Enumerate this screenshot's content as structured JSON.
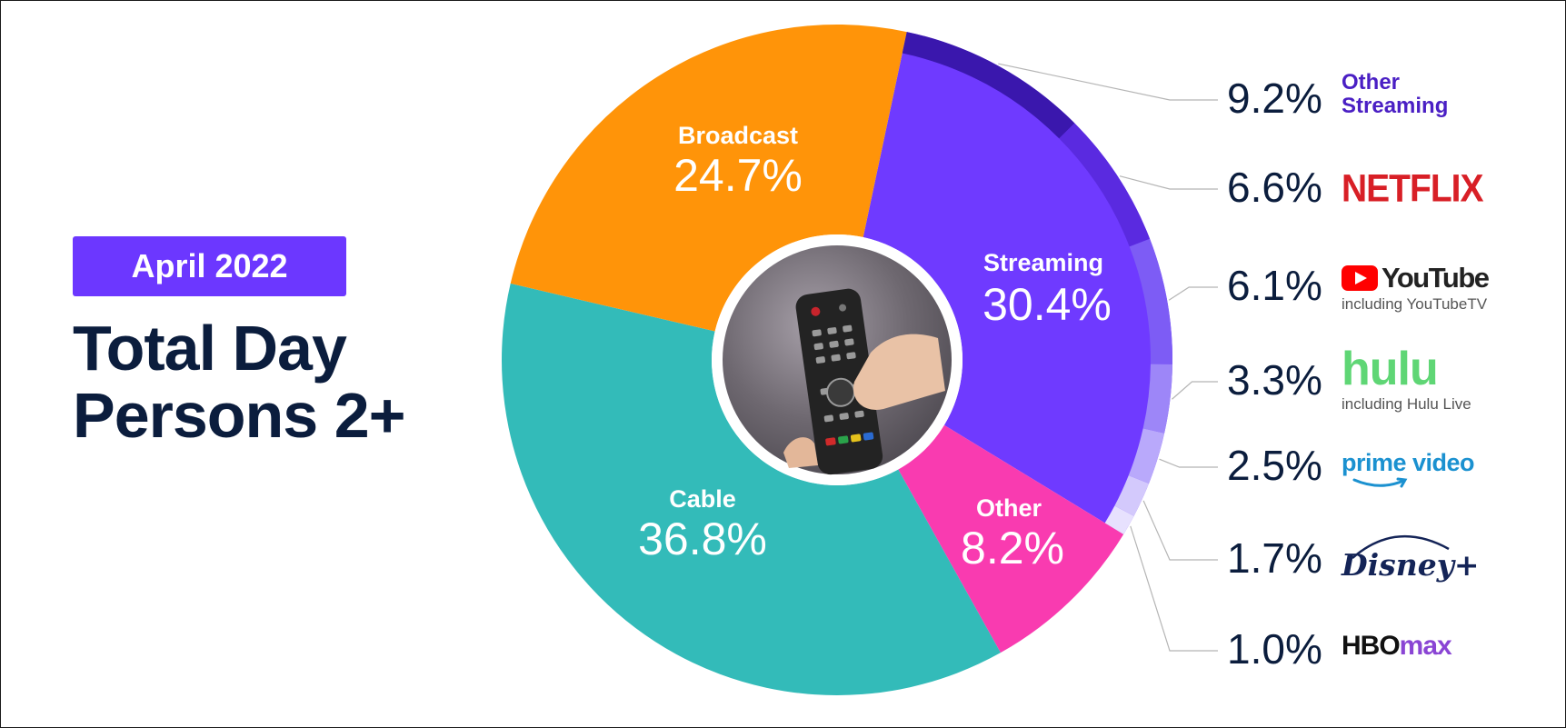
{
  "badge": {
    "label": "April 2022"
  },
  "title": {
    "line1": "Total Day",
    "line2": "Persons 2+"
  },
  "colors": {
    "broadcast": "#ff9409",
    "streaming": "#6f3aff",
    "other": "#f93bb0",
    "cable": "#33bbb9",
    "ring_other_streaming": "#3a17ad",
    "ring_netflix": "#5a2ae0",
    "ring_youtube": "#7d5cf5",
    "ring_hulu": "#9d86f8",
    "ring_prime": "#b9a9fb",
    "ring_disney": "#d3c9fc",
    "ring_hbo": "#e7e1fe",
    "photo": "#6f6a72"
  },
  "chart_data": {
    "type": "pie",
    "variant": "donut with streaming breakdown",
    "title": "Total Day Persons 2+",
    "period": "April 2022",
    "slices": [
      {
        "name": "Streaming",
        "label": "Streaming",
        "value": 30.4,
        "value_label": "30.4%",
        "color": "#6f3aff"
      },
      {
        "name": "Other",
        "label": "Other",
        "value": 8.2,
        "value_label": "8.2%",
        "color": "#f93bb0"
      },
      {
        "name": "Cable",
        "label": "Cable",
        "value": 36.8,
        "value_label": "36.8%",
        "color": "#33bbb9"
      },
      {
        "name": "Broadcast",
        "label": "Broadcast",
        "value": 24.7,
        "value_label": "24.7%",
        "color": "#ff9409"
      }
    ],
    "streaming_breakdown": [
      {
        "name": "Other Streaming",
        "value": 9.2,
        "value_label": "9.2%"
      },
      {
        "name": "Netflix",
        "value": 6.6,
        "value_label": "6.6%"
      },
      {
        "name": "YouTube",
        "value": 6.1,
        "value_label": "6.1%"
      },
      {
        "name": "Hulu",
        "value": 3.3,
        "value_label": "3.3%"
      },
      {
        "name": "Prime Video",
        "value": 2.5,
        "value_label": "2.5%"
      },
      {
        "name": "Disney+",
        "value": 1.7,
        "value_label": "1.7%"
      },
      {
        "name": "HBO Max",
        "value": 1.0,
        "value_label": "1.0%"
      }
    ]
  },
  "legend": {
    "other_streaming": {
      "line1": "Other",
      "line2": "Streaming"
    },
    "netflix": "NETFLIX",
    "youtube": {
      "word": "YouTube",
      "sub": "including YouTubeTV"
    },
    "hulu": {
      "word": "hulu",
      "sub": "including Hulu Live"
    },
    "prime": "prime video",
    "disney": "Disney+",
    "hbo": {
      "part1": "HBO",
      "part2": "max"
    }
  },
  "icons": {
    "center_photo": "tv-remote-photo",
    "youtube": "youtube-play-icon"
  }
}
